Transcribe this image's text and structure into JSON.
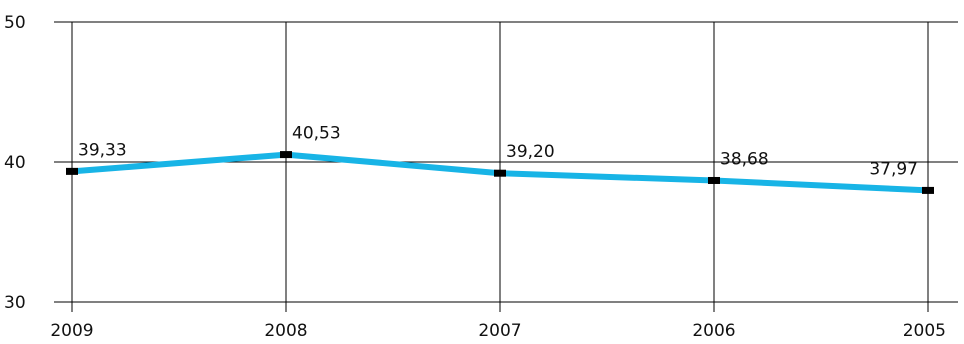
{
  "chart_data": {
    "type": "line",
    "categories": [
      "2009",
      "2008",
      "2007",
      "2006",
      "2005"
    ],
    "series": [
      {
        "values": [
          39.33,
          40.53,
          39.2,
          38.68,
          37.97
        ],
        "labels": [
          "39,33",
          "40,53",
          "39,20",
          "38,68",
          "37,97"
        ]
      }
    ],
    "ylim": [
      30,
      50
    ],
    "yticks": [
      "30",
      "40",
      "50"
    ],
    "grid": true,
    "colors": {
      "line": "#18b4e6",
      "marker": "#000000",
      "grid": "#000000"
    }
  }
}
